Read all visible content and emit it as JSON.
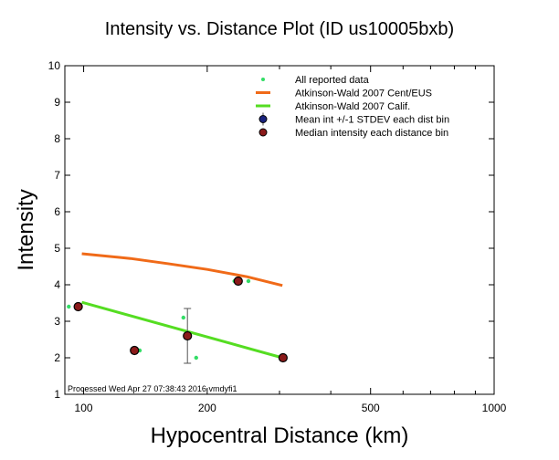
{
  "chart_data": {
    "type": "scatter",
    "title": "Intensity vs. Distance Plot (ID us10005bxb)",
    "xlabel": "Hypocentral Distance (km)",
    "ylabel": "Intensity",
    "xscale": "log",
    "xlim": [
      90,
      1000
    ],
    "ylim": [
      1,
      10
    ],
    "x_ticks": [
      100,
      200,
      500,
      1000
    ],
    "x_tick_labels": [
      "100",
      "200",
      "500",
      "1000"
    ],
    "y_ticks": [
      1,
      2,
      3,
      4,
      5,
      6,
      7,
      8,
      9,
      10
    ],
    "y_tick_labels": [
      "1",
      "2",
      "3",
      "4",
      "5",
      "6",
      "7",
      "8",
      "9",
      "10"
    ],
    "grid": false,
    "legend_position": "top-right",
    "legend": [
      {
        "key": "all",
        "label": "All reported data"
      },
      {
        "key": "cent",
        "label": "Atkinson-Wald 2007 Cent/EUS"
      },
      {
        "key": "calif",
        "label": "Atkinson-Wald 2007 Calif."
      },
      {
        "key": "mean",
        "label": "Mean int +/-1 STDEV each dist bin"
      },
      {
        "key": "median",
        "label": "Median intensity each distance bin"
      }
    ],
    "colors": {
      "all": "#33dd66",
      "cent": "#f06a18",
      "calif": "#55dd22",
      "median_fill": "#8b1a1a",
      "mean_fill": "#1a237e",
      "errorbar": "#555555"
    },
    "series": {
      "all_reported": [
        {
          "x": 92,
          "y": 3.4
        },
        {
          "x": 97,
          "y": 3.4
        },
        {
          "x": 137,
          "y": 2.2
        },
        {
          "x": 175,
          "y": 3.1
        },
        {
          "x": 188,
          "y": 2.0
        },
        {
          "x": 233,
          "y": 4.1
        },
        {
          "x": 252,
          "y": 4.1
        }
      ],
      "cent_eus": [
        {
          "x": 99,
          "y": 4.85
        },
        {
          "x": 130,
          "y": 4.72
        },
        {
          "x": 160,
          "y": 4.58
        },
        {
          "x": 200,
          "y": 4.42
        },
        {
          "x": 250,
          "y": 4.22
        },
        {
          "x": 305,
          "y": 3.98
        }
      ],
      "calif": [
        {
          "x": 99,
          "y": 3.52
        },
        {
          "x": 305,
          "y": 2.0
        }
      ],
      "mean_errorbar": [
        {
          "x": 179,
          "y": 2.6,
          "stdev": 0.75
        }
      ],
      "median": [
        {
          "x": 97,
          "y": 3.4
        },
        {
          "x": 133,
          "y": 2.2
        },
        {
          "x": 179,
          "y": 2.6
        },
        {
          "x": 238,
          "y": 4.1
        },
        {
          "x": 306,
          "y": 2.0
        }
      ]
    },
    "footnote": "Processed Wed Apr 27 07:38:43 2016 vmdyfi1"
  }
}
